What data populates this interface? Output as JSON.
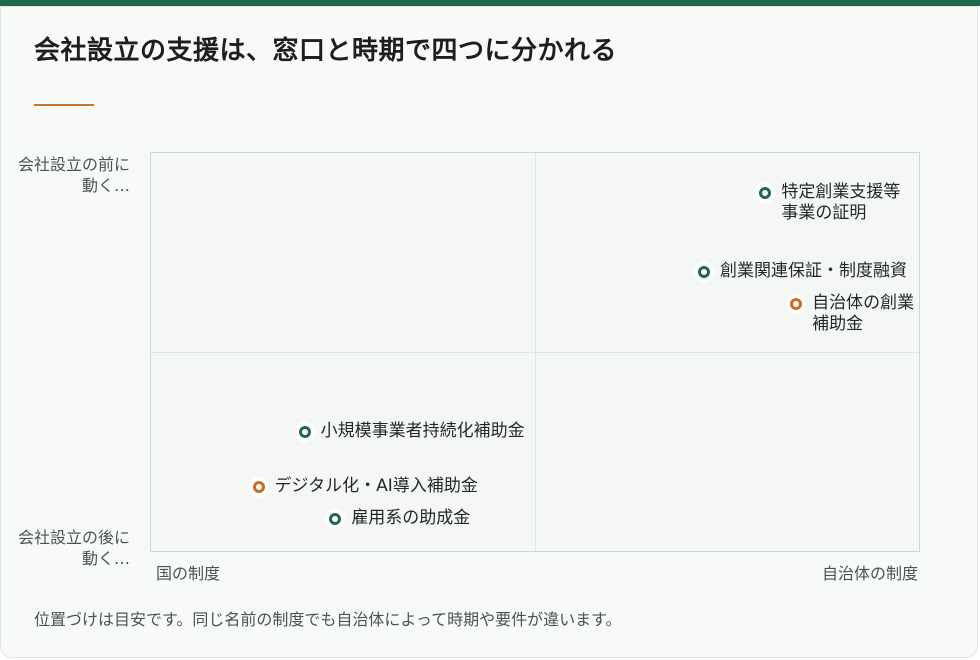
{
  "title": "会社設立の支援は、窓口と時期で四つに分かれる",
  "colors": {
    "national": "#1f6a4c",
    "local": "#c96f24",
    "accent": "#c8762f"
  },
  "chart_data": {
    "type": "scatter",
    "xlabel_left": "国の制度",
    "xlabel_right": "自治体の制度",
    "ylabel_top": "会社設立の前に動く…",
    "ylabel_bottom": "会社設立の後に動く…",
    "xlim": [
      0,
      1
    ],
    "ylim": [
      0,
      1
    ],
    "grid": true,
    "points": [
      {
        "name": "特定創業支援等事業の証明",
        "x": 0.8,
        "y": 0.9,
        "group": "national"
      },
      {
        "name": "創業関連保証・制度融資",
        "x": 0.72,
        "y": 0.7,
        "group": "national"
      },
      {
        "name": "自治体の創業補助金",
        "x": 0.84,
        "y": 0.62,
        "group": "local"
      },
      {
        "name": "小規模事業者持続化補助金",
        "x": 0.2,
        "y": 0.3,
        "group": "national"
      },
      {
        "name": "デジタル化・AI導入補助金",
        "x": 0.14,
        "y": 0.16,
        "group": "local"
      },
      {
        "name": "雇用系の助成金",
        "x": 0.24,
        "y": 0.08,
        "group": "national"
      }
    ]
  },
  "note": "位置づけは目安です。同じ名前の制度でも自治体によって時期や要件が違います。"
}
